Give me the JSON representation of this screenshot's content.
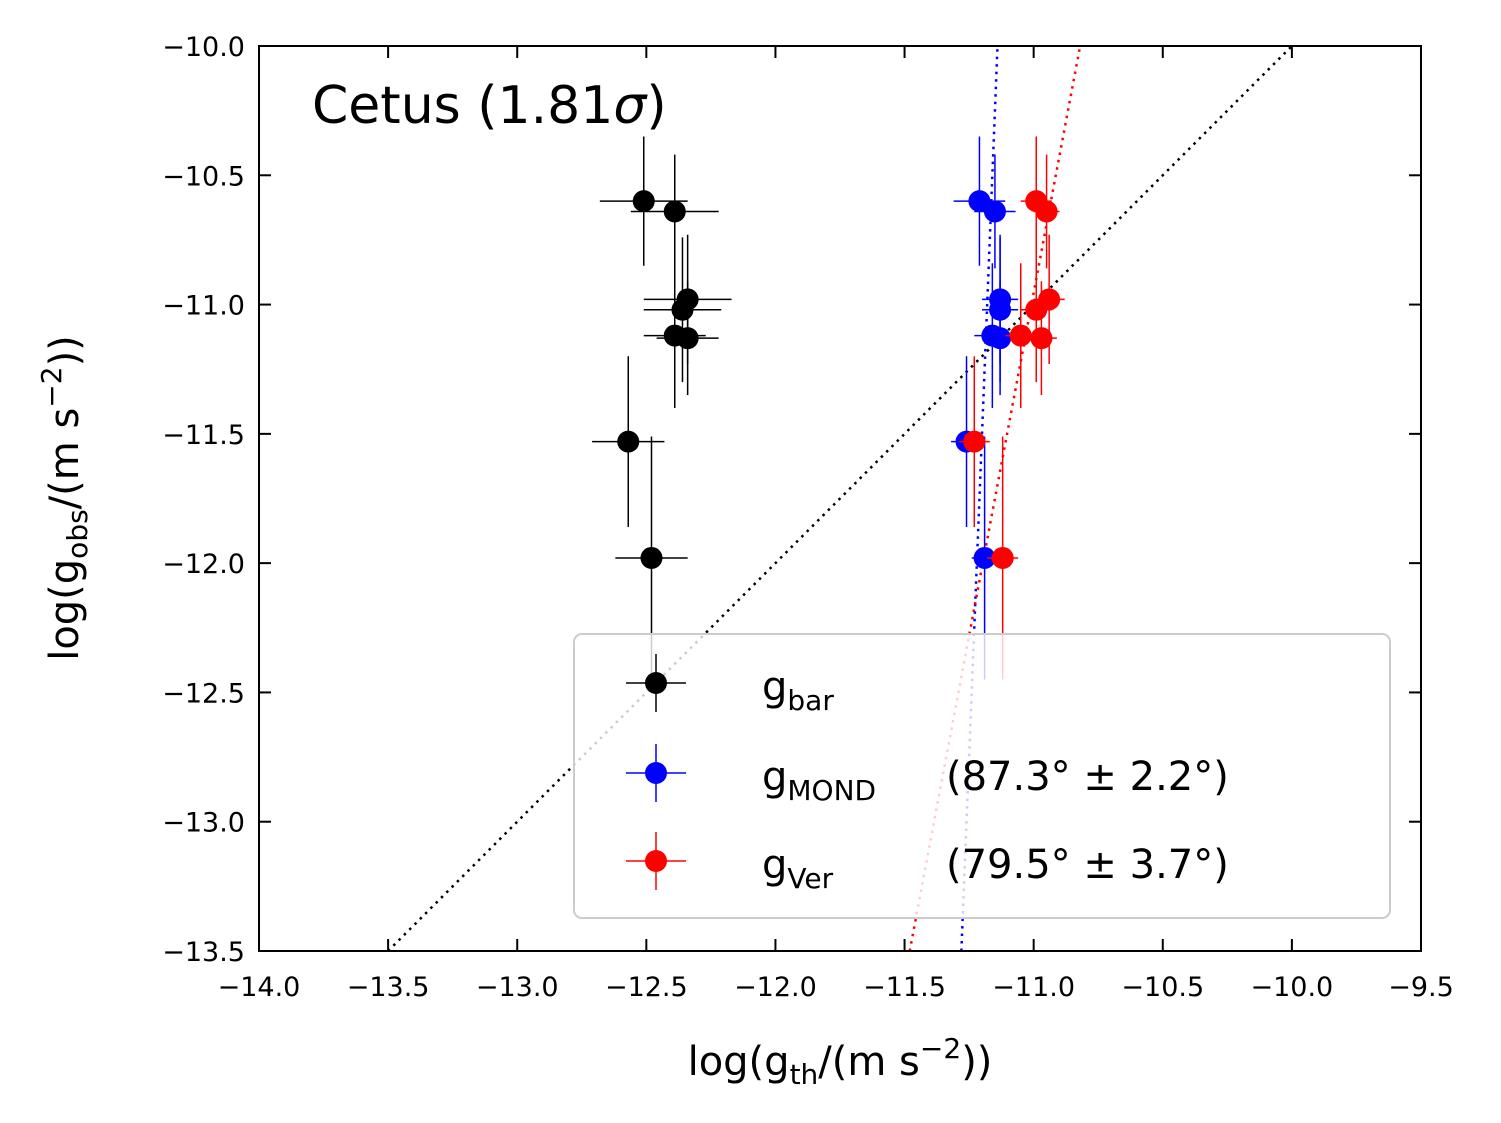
{
  "chart_data": {
    "type": "scatter",
    "annotation": {
      "prefix": "Cetus (1.81",
      "sigma": "σ",
      "suffix": ")"
    },
    "xlabel": {
      "pre": "log(g",
      "sub": "th",
      "mid": "/(m s",
      "sup": "−2",
      "post": "))"
    },
    "ylabel": {
      "pre": "log(g",
      "sub": "obs",
      "mid": "/(m s",
      "sup": "−2",
      "post": "))"
    },
    "xlim": [
      -14.0,
      -9.5
    ],
    "ylim": [
      -13.5,
      -10.0
    ],
    "xticks": [
      -14.0,
      -13.5,
      -13.0,
      -12.5,
      -12.0,
      -11.5,
      -11.0,
      -10.5,
      -10.0,
      -9.5
    ],
    "xtick_labels": [
      "−14.0",
      "−13.5",
      "−13.0",
      "−12.5",
      "−12.0",
      "−11.5",
      "−11.0",
      "−10.5",
      "−10.0",
      "−9.5"
    ],
    "yticks": [
      -10.0,
      -10.5,
      -11.0,
      -11.5,
      -12.0,
      -12.5,
      -13.0,
      -13.5
    ],
    "ytick_labels": [
      "−10.0",
      "−10.5",
      "−11.0",
      "−11.5",
      "−12.0",
      "−12.5",
      "−13.0",
      "−13.5"
    ],
    "reference_line": {
      "style": "dotted",
      "color": "#000000",
      "x": [
        -13.5,
        -10.0
      ],
      "y": [
        -13.5,
        -10.0
      ]
    },
    "series": [
      {
        "name": "bar",
        "legend_main": "g",
        "legend_sub": "bar",
        "legend_extra": "",
        "color": "#000000",
        "points": [
          {
            "x": -12.51,
            "y": -10.6,
            "xerr": 0.17,
            "yerr": 0.25
          },
          {
            "x": -12.39,
            "y": -10.64,
            "xerr": 0.17,
            "yerr": 0.22
          },
          {
            "x": -12.34,
            "y": -10.98,
            "xerr": 0.17,
            "yerr": 0.25
          },
          {
            "x": -12.36,
            "y": -11.02,
            "xerr": 0.15,
            "yerr": 0.28
          },
          {
            "x": -12.39,
            "y": -11.12,
            "xerr": 0.12,
            "yerr": 0.28
          },
          {
            "x": -12.34,
            "y": -11.13,
            "xerr": 0.12,
            "yerr": 0.22
          },
          {
            "x": -12.57,
            "y": -11.53,
            "xerr": 0.14,
            "yerr": 0.33
          },
          {
            "x": -12.48,
            "y": -11.98,
            "xerr": 0.14,
            "yerr": 0.47
          }
        ]
      },
      {
        "name": "MOND",
        "legend_main": "g",
        "legend_sub": "MOND",
        "legend_extra": "(87.3° ± 2.2°)",
        "color": "#0000ff",
        "points": [
          {
            "x": -11.21,
            "y": -10.6,
            "xerr": 0.1,
            "yerr": 0.25
          },
          {
            "x": -11.15,
            "y": -10.64,
            "xerr": 0.08,
            "yerr": 0.22
          },
          {
            "x": -11.13,
            "y": -10.98,
            "xerr": 0.07,
            "yerr": 0.25
          },
          {
            "x": -11.13,
            "y": -11.02,
            "xerr": 0.07,
            "yerr": 0.28
          },
          {
            "x": -11.16,
            "y": -11.12,
            "xerr": 0.07,
            "yerr": 0.28
          },
          {
            "x": -11.13,
            "y": -11.13,
            "xerr": 0.07,
            "yerr": 0.22
          },
          {
            "x": -11.26,
            "y": -11.53,
            "xerr": 0.06,
            "yerr": 0.33
          },
          {
            "x": -11.19,
            "y": -11.98,
            "xerr": 0.05,
            "yerr": 0.47
          }
        ]
      },
      {
        "name": "Ver",
        "legend_main": "g",
        "legend_sub": "Ver",
        "legend_extra": "(79.5° ± 3.7°)",
        "color": "#ff0000",
        "points": [
          {
            "x": -10.99,
            "y": -10.6,
            "xerr": 0.06,
            "yerr": 0.25
          },
          {
            "x": -10.95,
            "y": -10.64,
            "xerr": 0.05,
            "yerr": 0.22
          },
          {
            "x": -10.94,
            "y": -10.98,
            "xerr": 0.06,
            "yerr": 0.25
          },
          {
            "x": -10.99,
            "y": -11.02,
            "xerr": 0.06,
            "yerr": 0.28
          },
          {
            "x": -11.05,
            "y": -11.12,
            "xerr": 0.06,
            "yerr": 0.28
          },
          {
            "x": -10.97,
            "y": -11.13,
            "xerr": 0.06,
            "yerr": 0.22
          },
          {
            "x": -11.23,
            "y": -11.53,
            "xerr": 0.06,
            "yerr": 0.33
          },
          {
            "x": -11.12,
            "y": -11.98,
            "xerr": 0.06,
            "yerr": 0.47
          }
        ]
      }
    ],
    "fit_lines": [
      {
        "series": "MOND",
        "style": "dotted",
        "color": "#0000ff",
        "x": [
          -11.28,
          -11.14
        ],
        "y": [
          -13.5,
          -10.0
        ]
      },
      {
        "series": "Ver",
        "style": "dotted",
        "color": "#ff0000",
        "x": [
          -11.48,
          -10.82
        ],
        "y": [
          -13.5,
          -10.0
        ]
      }
    ],
    "legend_location": "lower-right"
  }
}
